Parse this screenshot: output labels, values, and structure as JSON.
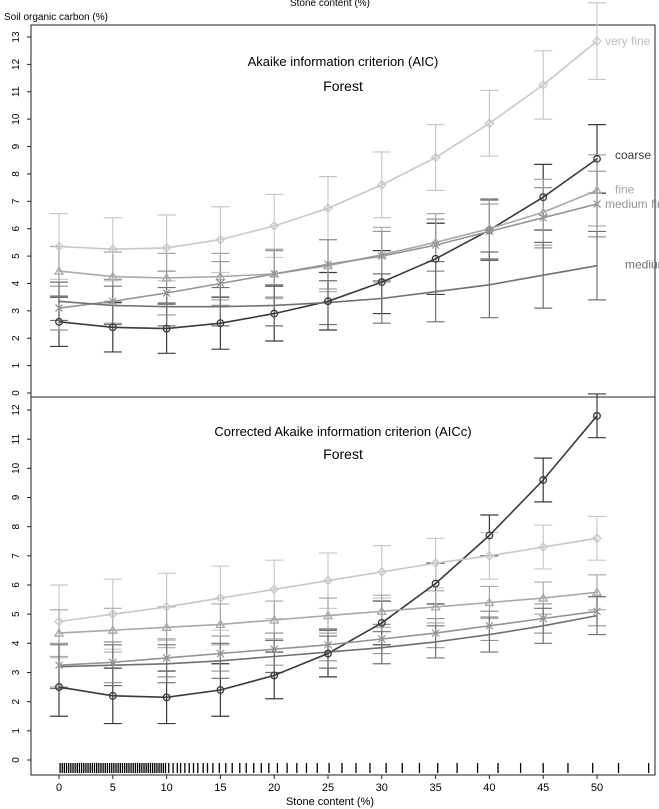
{
  "figure": {
    "top_axis_title": "Stone content (%)",
    "y_axis_title": "Soil organic carbon (%)",
    "bottom_axis_title": "Stone content (%)"
  },
  "chart_data": [
    {
      "type": "line",
      "title": "Akaike information criterion (AIC)",
      "subtitle": "Forest",
      "xlabel": "Stone content (%)",
      "ylabel": "Soil organic carbon (%)",
      "x": [
        0,
        5,
        10,
        15,
        20,
        25,
        30,
        35,
        40,
        45,
        50
      ],
      "xlim": [
        -2,
        58
      ],
      "ylim": [
        0,
        13
      ],
      "yticks": [
        0,
        1,
        2,
        3,
        4,
        5,
        6,
        7,
        8,
        9,
        10,
        11,
        12,
        13
      ],
      "grid": false,
      "series": [
        {
          "name": "very fine",
          "color": "#c8c8c8",
          "marker": "diamond",
          "values": [
            5.35,
            5.25,
            5.3,
            5.6,
            6.1,
            6.75,
            7.6,
            8.6,
            9.85,
            11.25,
            12.85
          ],
          "err": [
            1.2,
            1.15,
            1.2,
            1.2,
            1.15,
            1.15,
            1.2,
            1.2,
            1.2,
            1.25,
            1.4
          ]
        },
        {
          "name": "coarse",
          "color": "#3a3a3a",
          "marker": "circle",
          "values": [
            2.6,
            2.4,
            2.35,
            2.55,
            2.9,
            3.35,
            4.05,
            4.9,
            5.95,
            7.15,
            8.55
          ],
          "err": [
            0.9,
            0.9,
            0.9,
            0.95,
            1.0,
            1.05,
            1.15,
            1.3,
            1.1,
            1.2,
            1.25
          ]
        },
        {
          "name": "fine",
          "color": "#a8a8a8",
          "marker": "triangle",
          "values": [
            4.45,
            4.25,
            4.2,
            4.25,
            4.35,
            4.65,
            5.05,
            5.5,
            6.0,
            6.6,
            7.4
          ],
          "err": [
            0.9,
            0.9,
            0.9,
            0.85,
            0.9,
            0.95,
            1.0,
            1.05,
            1.1,
            1.2,
            1.3
          ]
        },
        {
          "name": "medium fine",
          "color": "#949494",
          "marker": "star",
          "values": [
            3.1,
            3.35,
            3.65,
            4.0,
            4.35,
            4.7,
            5.0,
            5.4,
            5.9,
            6.4,
            6.9
          ],
          "err": [
            0.8,
            0.8,
            0.8,
            0.8,
            0.85,
            0.9,
            0.9,
            0.95,
            1.0,
            1.1,
            1.2
          ]
        },
        {
          "name": "medium",
          "color": "#707070",
          "marker": "none",
          "values": [
            3.35,
            3.2,
            3.15,
            3.15,
            3.2,
            3.3,
            3.45,
            3.7,
            3.95,
            4.3,
            4.65
          ],
          "err": [
            0.7,
            0.7,
            0.7,
            0.7,
            0.75,
            0.8,
            0.9,
            1.1,
            1.2,
            1.2,
            1.25
          ]
        }
      ]
    },
    {
      "type": "line",
      "title": "Corrected Akaike information criterion (AICc)",
      "subtitle": "Forest",
      "xlabel": "Stone content (%)",
      "ylabel": "Soil organic carbon (%)",
      "x": [
        0,
        5,
        10,
        15,
        20,
        25,
        30,
        35,
        40,
        45,
        50
      ],
      "xlim": [
        -2,
        58
      ],
      "ylim": [
        -0.3,
        13
      ],
      "yticks": [
        0,
        1,
        2,
        3,
        4,
        5,
        6,
        7,
        8,
        9,
        10,
        11,
        12
      ],
      "xticks": [
        0,
        5,
        10,
        15,
        20,
        25,
        30,
        35,
        40,
        45,
        50
      ],
      "grid": false,
      "rug": [
        0.1,
        0.3,
        0.5,
        0.7,
        0.9,
        1.1,
        1.3,
        1.5,
        1.7,
        1.9,
        2.1,
        2.3,
        2.5,
        2.7,
        2.9,
        3.1,
        3.3,
        3.5,
        3.7,
        3.9,
        4.1,
        4.3,
        4.5,
        4.7,
        4.9,
        5.1,
        5.3,
        5.5,
        5.7,
        5.9,
        6.1,
        6.3,
        6.5,
        6.7,
        6.9,
        7.1,
        7.3,
        7.5,
        7.7,
        7.9,
        8.1,
        8.3,
        8.5,
        8.7,
        8.9,
        9.1,
        9.3,
        9.5,
        9.7,
        9.9,
        10.2,
        10.6,
        11.0,
        11.3,
        11.7,
        12.1,
        12.5,
        12.9,
        13.4,
        13.8,
        14.3,
        14.9,
        15.5,
        16.1,
        16.8,
        17.4,
        18.1,
        18.8,
        19.5,
        20.3,
        21.2,
        22.1,
        23.0,
        24.0,
        25.1,
        26.3,
        27.6,
        28.9,
        30.4,
        31.9,
        33.5,
        35.2,
        37.0,
        38.9,
        40.8,
        42.9,
        45.0,
        47.3,
        49.6,
        52.0,
        54.8
      ],
      "series": [
        {
          "name": "coarse",
          "color": "#3a3a3a",
          "marker": "circle",
          "values": [
            2.5,
            2.2,
            2.15,
            2.4,
            2.9,
            3.65,
            4.7,
            6.05,
            7.7,
            9.6,
            11.8
          ],
          "err": [
            1.0,
            0.95,
            0.9,
            0.9,
            0.8,
            0.8,
            0.75,
            0.7,
            0.7,
            0.75,
            0.75
          ]
        },
        {
          "name": "very fine",
          "color": "#c8c8c8",
          "marker": "diamond",
          "values": [
            4.75,
            5.0,
            5.25,
            5.55,
            5.85,
            6.15,
            6.45,
            6.75,
            7.0,
            7.3,
            7.6
          ],
          "err": [
            1.25,
            1.2,
            1.15,
            1.1,
            1.0,
            0.95,
            0.9,
            0.85,
            0.8,
            0.75,
            0.75
          ]
        },
        {
          "name": "fine",
          "color": "#a8a8a8",
          "marker": "triangle",
          "values": [
            4.35,
            4.45,
            4.55,
            4.65,
            4.8,
            4.95,
            5.1,
            5.25,
            5.4,
            5.55,
            5.75
          ],
          "err": [
            0.8,
            0.75,
            0.7,
            0.7,
            0.65,
            0.6,
            0.55,
            0.55,
            0.55,
            0.55,
            0.6
          ]
        },
        {
          "name": "medium fine",
          "color": "#949494",
          "marker": "star",
          "values": [
            3.25,
            3.35,
            3.5,
            3.65,
            3.8,
            3.95,
            4.15,
            4.35,
            4.6,
            4.85,
            5.1
          ],
          "err": [
            0.75,
            0.7,
            0.65,
            0.6,
            0.55,
            0.55,
            0.5,
            0.5,
            0.5,
            0.5,
            0.5
          ]
        },
        {
          "name": "medium",
          "color": "#707070",
          "marker": "none",
          "values": [
            3.2,
            3.25,
            3.3,
            3.4,
            3.55,
            3.7,
            3.85,
            4.05,
            4.3,
            4.6,
            4.95
          ],
          "err": [
            0.75,
            0.7,
            0.65,
            0.6,
            0.55,
            0.55,
            0.55,
            0.55,
            0.6,
            0.6,
            0.65
          ]
        }
      ]
    }
  ]
}
